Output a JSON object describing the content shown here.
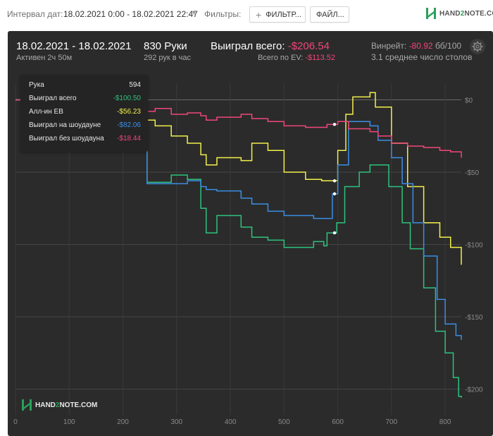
{
  "toolbar": {
    "interval_label": "Интервал дат:",
    "date_range": "18.02.2021 0:00 - 18.02.2021 22:47",
    "filters_label": "Фильтры:",
    "filters_button": "ФИЛЬТР...",
    "file_button": "ФАЙЛ...",
    "logo_text_1": "HAND",
    "logo_text_2": "2",
    "logo_text_3": "NOTE.COM"
  },
  "summary": {
    "date_range": "18.02.2021 - 18.02.2021",
    "active": "Активен 2ч 50м",
    "hands": "830 Руки",
    "hands_per_hour": "292 рук в час",
    "won_total_label": "Выиграл всего:",
    "won_total_value": "-$206.54",
    "ev_label": "Всего по EV:",
    "ev_value": "-$113.52",
    "winrate_label": "Винрейт:",
    "winrate_value": "-80.92",
    "winrate_unit": "бб/100",
    "avg_tables": "3.1 среднее число столов"
  },
  "tooltip": {
    "rows": [
      {
        "label": "Рука",
        "value": "594",
        "color": "#e8e8e8"
      },
      {
        "label": "Выиграл всего",
        "value": "-$100.50",
        "color": "#2ec27e"
      },
      {
        "label": "Алл-ин EB",
        "value": "-$56.23",
        "color": "#f2f04a"
      },
      {
        "label": "Выиграл на шоудауне",
        "value": "-$82.06",
        "color": "#3b8ee6"
      },
      {
        "label": "Выиграл без шоудауна",
        "value": "-$18.44",
        "color": "#f0467a"
      }
    ]
  },
  "watermark": {
    "text_1": "HAND",
    "text_2": "2",
    "text_3": "NOTE.COM"
  },
  "chart_data": {
    "type": "line",
    "x_ticks": [
      0,
      100,
      200,
      300,
      400,
      500,
      600,
      700,
      800
    ],
    "y_ticks": [
      {
        "value": 0,
        "label": "$0"
      },
      {
        "value": -50,
        "label": "-$50"
      },
      {
        "value": -100,
        "label": "-$100"
      },
      {
        "value": -150,
        "label": "-$150"
      },
      {
        "value": -200,
        "label": "-$200"
      }
    ],
    "xlim": [
      0,
      830
    ],
    "ylim": [
      -210,
      5
    ],
    "grid": true,
    "hover_x": 594,
    "series": [
      {
        "name": "Выиграл всего",
        "color": "#2ec27e",
        "points": [
          [
            0,
            0
          ],
          [
            60,
            -10
          ],
          [
            120,
            -18
          ],
          [
            180,
            -25
          ],
          [
            238,
            -30
          ],
          [
            245,
            -57
          ],
          [
            290,
            -52
          ],
          [
            320,
            -55
          ],
          [
            345,
            -75
          ],
          [
            355,
            -92
          ],
          [
            375,
            -80
          ],
          [
            420,
            -88
          ],
          [
            440,
            -95
          ],
          [
            470,
            -97
          ],
          [
            500,
            -102
          ],
          [
            555,
            -98
          ],
          [
            574,
            -101
          ],
          [
            580,
            -92
          ],
          [
            598,
            -85
          ],
          [
            613,
            -60
          ],
          [
            640,
            -50
          ],
          [
            660,
            -45
          ],
          [
            695,
            -60
          ],
          [
            720,
            -85
          ],
          [
            735,
            -103
          ],
          [
            760,
            -130
          ],
          [
            782,
            -160
          ],
          [
            800,
            -175
          ],
          [
            815,
            -192
          ],
          [
            825,
            -205
          ],
          [
            830,
            -206
          ]
        ]
      },
      {
        "name": "Алл-ин EB",
        "color": "#f2f04a",
        "points": [
          [
            0,
            0
          ],
          [
            60,
            -3
          ],
          [
            120,
            -6
          ],
          [
            180,
            -9
          ],
          [
            240,
            -14
          ],
          [
            260,
            -18
          ],
          [
            290,
            -25
          ],
          [
            320,
            -30
          ],
          [
            345,
            -38
          ],
          [
            355,
            -45
          ],
          [
            375,
            -40
          ],
          [
            420,
            -42
          ],
          [
            440,
            -30
          ],
          [
            470,
            -35
          ],
          [
            500,
            -50
          ],
          [
            540,
            -55
          ],
          [
            570,
            -56
          ],
          [
            590,
            -56
          ],
          [
            600,
            -35
          ],
          [
            615,
            -10
          ],
          [
            628,
            2
          ],
          [
            660,
            5
          ],
          [
            670,
            -5
          ],
          [
            700,
            -30
          ],
          [
            730,
            -60
          ],
          [
            760,
            -85
          ],
          [
            790,
            -95
          ],
          [
            810,
            -102
          ],
          [
            830,
            -114
          ]
        ]
      },
      {
        "name": "Выиграл на шоудауне",
        "color": "#3b8ee6",
        "points": [
          [
            0,
            0
          ],
          [
            60,
            -5
          ],
          [
            120,
            -10
          ],
          [
            180,
            -18
          ],
          [
            238,
            -28
          ],
          [
            245,
            -58
          ],
          [
            290,
            -58
          ],
          [
            320,
            -56
          ],
          [
            345,
            -60
          ],
          [
            355,
            -62
          ],
          [
            375,
            -63
          ],
          [
            420,
            -68
          ],
          [
            440,
            -72
          ],
          [
            470,
            -77
          ],
          [
            500,
            -80
          ],
          [
            555,
            -82
          ],
          [
            578,
            -82
          ],
          [
            590,
            -65
          ],
          [
            600,
            -45
          ],
          [
            620,
            -15
          ],
          [
            660,
            -18
          ],
          [
            675,
            -28
          ],
          [
            700,
            -40
          ],
          [
            720,
            -58
          ],
          [
            740,
            -85
          ],
          [
            760,
            -108
          ],
          [
            785,
            -138
          ],
          [
            800,
            -155
          ],
          [
            820,
            -163
          ],
          [
            830,
            -166
          ]
        ]
      },
      {
        "name": "Выиграл без шоудауна",
        "color": "#f0467a",
        "points": [
          [
            0,
            0
          ],
          [
            60,
            -2
          ],
          [
            120,
            -4
          ],
          [
            180,
            -6
          ],
          [
            240,
            -8
          ],
          [
            260,
            -6
          ],
          [
            290,
            -10
          ],
          [
            320,
            -9
          ],
          [
            345,
            -11
          ],
          [
            355,
            -14
          ],
          [
            375,
            -12
          ],
          [
            420,
            -10
          ],
          [
            440,
            -13
          ],
          [
            470,
            -15
          ],
          [
            500,
            -18
          ],
          [
            540,
            -19
          ],
          [
            560,
            -19
          ],
          [
            580,
            -17
          ],
          [
            600,
            -15
          ],
          [
            620,
            -20
          ],
          [
            660,
            -22
          ],
          [
            675,
            -25
          ],
          [
            700,
            -30
          ],
          [
            730,
            -32
          ],
          [
            760,
            -33
          ],
          [
            790,
            -35
          ],
          [
            810,
            -36
          ],
          [
            830,
            -40
          ]
        ]
      }
    ]
  }
}
